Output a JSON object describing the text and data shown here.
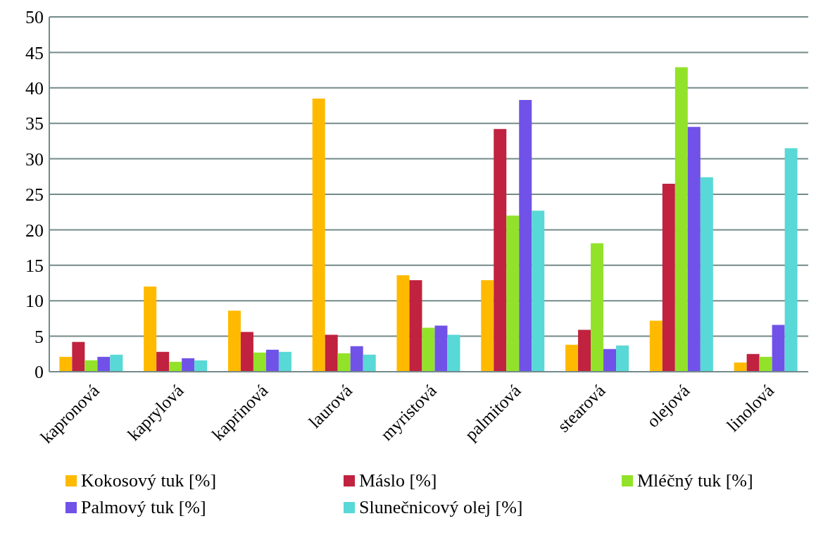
{
  "chart_data": {
    "type": "bar",
    "categories": [
      "kapronová",
      "kaprylová",
      "kaprinová",
      "laurová",
      "myristová",
      "palmitová",
      "stearová",
      "olejová",
      "linolová"
    ],
    "series": [
      {
        "name": "Kokosový tuk [%]",
        "color": "#ffba00",
        "values": [
          2.1,
          12.0,
          8.6,
          38.5,
          13.6,
          12.9,
          3.8,
          7.2,
          1.3
        ]
      },
      {
        "name": "Máslo [%]",
        "color": "#c0223f",
        "values": [
          4.2,
          2.8,
          5.6,
          5.2,
          12.9,
          34.2,
          5.9,
          26.5,
          2.5
        ]
      },
      {
        "name": "Mléčný tuk [%]",
        "color": "#93e22a",
        "values": [
          1.6,
          1.4,
          2.7,
          2.6,
          6.2,
          22.0,
          18.1,
          42.9,
          2.1
        ]
      },
      {
        "name": "Palmový tuk [%]",
        "color": "#7052e8",
        "values": [
          2.1,
          1.9,
          3.1,
          3.6,
          6.5,
          38.3,
          3.2,
          34.5,
          6.6
        ]
      },
      {
        "name": "Slunečnicový olej [%]",
        "color": "#58d8d6",
        "values": [
          2.4,
          1.6,
          2.8,
          2.4,
          5.2,
          22.7,
          3.7,
          27.4,
          31.5
        ]
      }
    ],
    "ylim": [
      0,
      50
    ],
    "yticks": [
      0,
      5,
      10,
      15,
      20,
      25,
      30,
      35,
      40,
      45,
      50
    ],
    "grid": "y",
    "legend": "bottom"
  }
}
